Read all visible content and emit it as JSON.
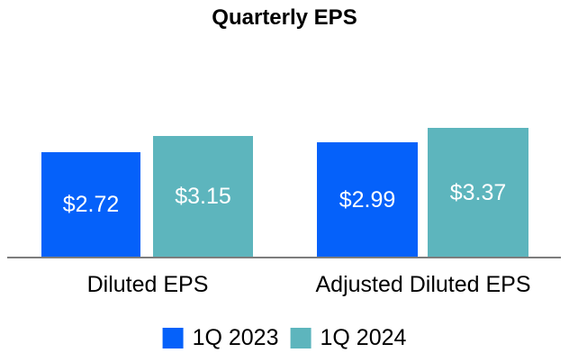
{
  "chart_data": {
    "type": "bar",
    "title": "Quarterly EPS",
    "categories": [
      "Diluted EPS",
      "Adjusted Diluted EPS"
    ],
    "series": [
      {
        "name": "1Q 2023",
        "color": "#0561FA",
        "values": [
          2.72,
          2.99
        ],
        "labels": [
          "$2.72",
          "$2.99"
        ]
      },
      {
        "name": "1Q 2024",
        "color": "#5DB5BD",
        "values": [
          3.15,
          3.37
        ],
        "labels": [
          "$3.15",
          "$3.37"
        ]
      }
    ],
    "xlabel": "",
    "ylabel": "",
    "ylim": [
      0,
      3.5
    ],
    "grid": false,
    "y_axis_visible": false,
    "value_label_position": "inside-center",
    "legend_position": "bottom"
  },
  "colors": {
    "series_1q2023": "#0561FA",
    "series_1q2024": "#5DB5BD",
    "axis_line": "#7d7d7d",
    "value_label_text": "#ffffff",
    "text": "#000000",
    "background": "#ffffff"
  }
}
